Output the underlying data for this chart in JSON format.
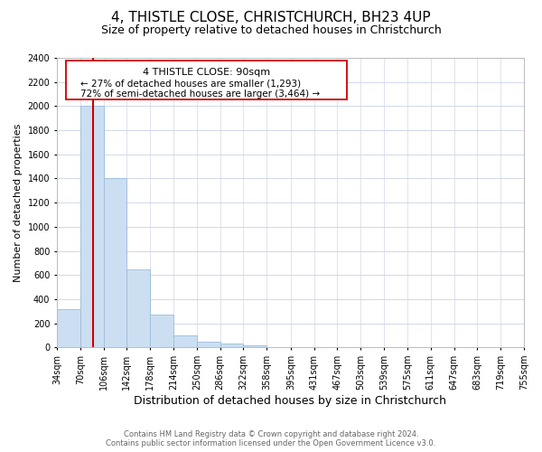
{
  "title": "4, THISTLE CLOSE, CHRISTCHURCH, BH23 4UP",
  "subtitle": "Size of property relative to detached houses in Christchurch",
  "xlabel": "Distribution of detached houses by size in Christchurch",
  "ylabel": "Number of detached properties",
  "bar_edges": [
    34,
    70,
    106,
    142,
    178,
    214,
    250,
    286,
    322,
    358,
    395,
    431,
    467,
    503,
    539,
    575,
    611,
    647,
    683,
    719,
    755
  ],
  "bar_heights": [
    320,
    2000,
    1400,
    650,
    275,
    100,
    45,
    30,
    20,
    0,
    0,
    0,
    0,
    0,
    0,
    0,
    0,
    0,
    0,
    0
  ],
  "bar_color": "#ccdff2",
  "bar_edge_color": "#9bbcd8",
  "vline_x": 90,
  "vline_color": "#cc0000",
  "ylim": [
    0,
    2400
  ],
  "yticks": [
    0,
    200,
    400,
    600,
    800,
    1000,
    1200,
    1400,
    1600,
    1800,
    2000,
    2200,
    2400
  ],
  "ann_line1": "4 THISTLE CLOSE: 90sqm",
  "ann_line2": "← 27% of detached houses are smaller (1,293)",
  "ann_line3": "72% of semi-detached houses are larger (3,464) →",
  "footer_line1": "Contains HM Land Registry data © Crown copyright and database right 2024.",
  "footer_line2": "Contains public sector information licensed under the Open Government Licence v3.0.",
  "grid_color": "#d0d8e8",
  "background_color": "#ffffff",
  "title_fontsize": 11,
  "subtitle_fontsize": 9,
  "tick_label_fontsize": 7,
  "ylabel_fontsize": 8,
  "xlabel_fontsize": 9
}
